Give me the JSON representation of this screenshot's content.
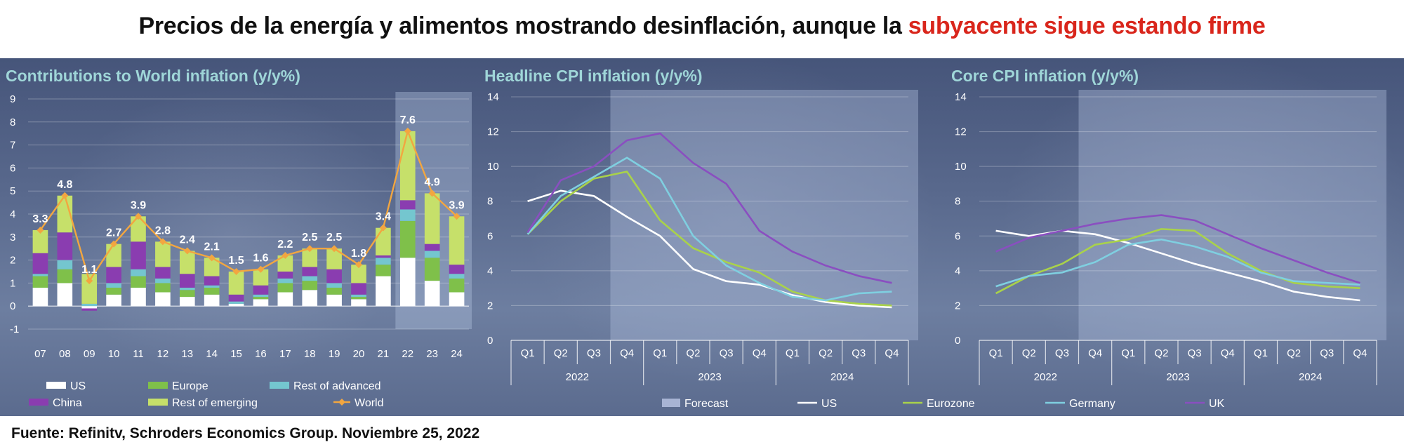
{
  "title_main": "Precios de la energía y alimentos mostrando desinflación, aunque la ",
  "title_highlight": "subyacente sigue estando firme",
  "source": "Fuente: Refinitv, Schroders Economics Group. Noviembre 25, 2022",
  "colors": {
    "US": "#ffffff",
    "Europe": "#7fc04a",
    "Rest of advanced": "#74c6cf",
    "China": "#8a3db0",
    "Rest of emerging": "#c6e06a",
    "World": "#f2a640",
    "UK": "#8a4fc0",
    "Eurozone": "#a9d24a",
    "Germany": "#7fcfe0",
    "Forecast": "#a8b4d4"
  },
  "chart_data": [
    {
      "type": "bar",
      "stacked": true,
      "title": "Contributions to World inflation (y/y%)",
      "categories": [
        "07",
        "08",
        "09",
        "10",
        "11",
        "12",
        "13",
        "14",
        "15",
        "16",
        "17",
        "18",
        "19",
        "20",
        "21",
        "22",
        "23",
        "24"
      ],
      "ylim": [
        -1,
        9
      ],
      "yticks": [
        "-1",
        "0",
        "1",
        "2",
        "3",
        "4",
        "5",
        "6",
        "7",
        "8",
        "9"
      ],
      "highlight_from_index": 15,
      "series": [
        {
          "name": "US",
          "values": [
            0.8,
            1.0,
            -0.1,
            0.5,
            0.8,
            0.6,
            0.4,
            0.5,
            0.1,
            0.3,
            0.6,
            0.7,
            0.5,
            0.3,
            1.3,
            2.1,
            1.1,
            0.6
          ]
        },
        {
          "name": "Europe",
          "values": [
            0.5,
            0.6,
            0.0,
            0.3,
            0.5,
            0.4,
            0.3,
            0.3,
            0.0,
            0.1,
            0.4,
            0.4,
            0.3,
            0.1,
            0.5,
            1.6,
            1.0,
            0.6
          ]
        },
        {
          "name": "Rest of advanced",
          "values": [
            0.1,
            0.4,
            0.1,
            0.2,
            0.3,
            0.2,
            0.1,
            0.1,
            0.1,
            0.1,
            0.2,
            0.2,
            0.2,
            0.1,
            0.3,
            0.5,
            0.3,
            0.2
          ]
        },
        {
          "name": "China",
          "values": [
            0.9,
            1.2,
            -0.1,
            0.7,
            1.2,
            0.5,
            0.6,
            0.4,
            0.3,
            0.4,
            0.3,
            0.4,
            0.6,
            0.5,
            0.1,
            0.4,
            0.3,
            0.4
          ]
        },
        {
          "name": "Rest of emerging",
          "values": [
            1.0,
            1.6,
            1.3,
            1.0,
            1.1,
            1.1,
            1.0,
            0.8,
            1.0,
            0.7,
            0.7,
            0.8,
            0.9,
            0.8,
            1.2,
            3.0,
            2.2,
            2.1
          ]
        }
      ],
      "line": {
        "name": "World",
        "values": [
          3.3,
          4.8,
          1.1,
          2.7,
          3.9,
          2.8,
          2.4,
          2.1,
          1.5,
          1.6,
          2.2,
          2.5,
          2.5,
          1.8,
          3.4,
          7.6,
          4.9,
          3.9
        ]
      },
      "data_labels": [
        "3.3",
        "4.8",
        "1.1",
        "2.7",
        "3.9",
        "2.8",
        "2.4",
        "2.1",
        "1.5",
        "1.6",
        "2.2",
        "2.5",
        "2.5",
        "1.8",
        "3.4",
        "7.6",
        "4.9",
        "3.9"
      ],
      "legend": [
        "US",
        "Europe",
        "Rest of advanced",
        "China",
        "Rest of emerging",
        "World"
      ]
    },
    {
      "type": "line",
      "title": "Headline CPI inflation (y/y%)",
      "categories": [
        "Q1",
        "Q2",
        "Q3",
        "Q4",
        "Q1",
        "Q2",
        "Q3",
        "Q4",
        "Q1",
        "Q2",
        "Q3",
        "Q4"
      ],
      "years": [
        "2022",
        "2023",
        "2024"
      ],
      "ylim": [
        0,
        14
      ],
      "yticks": [
        "0",
        "2",
        "4",
        "6",
        "8",
        "10",
        "12",
        "14"
      ],
      "forecast_from_index": 3,
      "series": [
        {
          "name": "US",
          "values": [
            8.0,
            8.6,
            8.3,
            7.1,
            6.0,
            4.1,
            3.4,
            3.2,
            2.6,
            2.2,
            2.0,
            1.9
          ]
        },
        {
          "name": "Eurozone",
          "values": [
            6.1,
            8.0,
            9.3,
            9.7,
            6.9,
            5.3,
            4.5,
            3.9,
            2.8,
            2.3,
            2.1,
            2.0
          ]
        },
        {
          "name": "Germany",
          "values": [
            6.1,
            8.3,
            9.4,
            10.5,
            9.3,
            6.0,
            4.3,
            3.3,
            2.5,
            2.3,
            2.7,
            2.8
          ]
        },
        {
          "name": "UK",
          "values": [
            6.2,
            9.2,
            10.0,
            11.5,
            11.9,
            10.2,
            9.0,
            6.3,
            5.1,
            4.3,
            3.7,
            3.3
          ]
        }
      ]
    },
    {
      "type": "line",
      "title": "Core CPI inflation (y/y%)",
      "categories": [
        "Q1",
        "Q2",
        "Q3",
        "Q4",
        "Q1",
        "Q2",
        "Q3",
        "Q4",
        "Q1",
        "Q2",
        "Q3",
        "Q4"
      ],
      "years": [
        "2022",
        "2023",
        "2024"
      ],
      "ylim": [
        0,
        14
      ],
      "yticks": [
        "0",
        "2",
        "4",
        "6",
        "8",
        "10",
        "12",
        "14"
      ],
      "forecast_from_index": 3,
      "series": [
        {
          "name": "US",
          "values": [
            6.3,
            6.0,
            6.3,
            6.1,
            5.6,
            5.0,
            4.4,
            3.9,
            3.4,
            2.8,
            2.5,
            2.3
          ]
        },
        {
          "name": "Eurozone",
          "values": [
            2.7,
            3.7,
            4.4,
            5.5,
            5.8,
            6.4,
            6.3,
            5.0,
            4.0,
            3.3,
            3.1,
            3.0
          ]
        },
        {
          "name": "Germany",
          "values": [
            3.1,
            3.7,
            3.9,
            4.5,
            5.5,
            5.8,
            5.4,
            4.8,
            3.9,
            3.4,
            3.3,
            3.2
          ]
        },
        {
          "name": "UK",
          "values": [
            5.1,
            5.9,
            6.3,
            6.7,
            7.0,
            7.2,
            6.9,
            6.1,
            5.3,
            4.6,
            3.9,
            3.3
          ]
        }
      ]
    }
  ],
  "bottom_legend": [
    "Forecast",
    "US",
    "Eurozone",
    "Germany",
    "UK"
  ]
}
